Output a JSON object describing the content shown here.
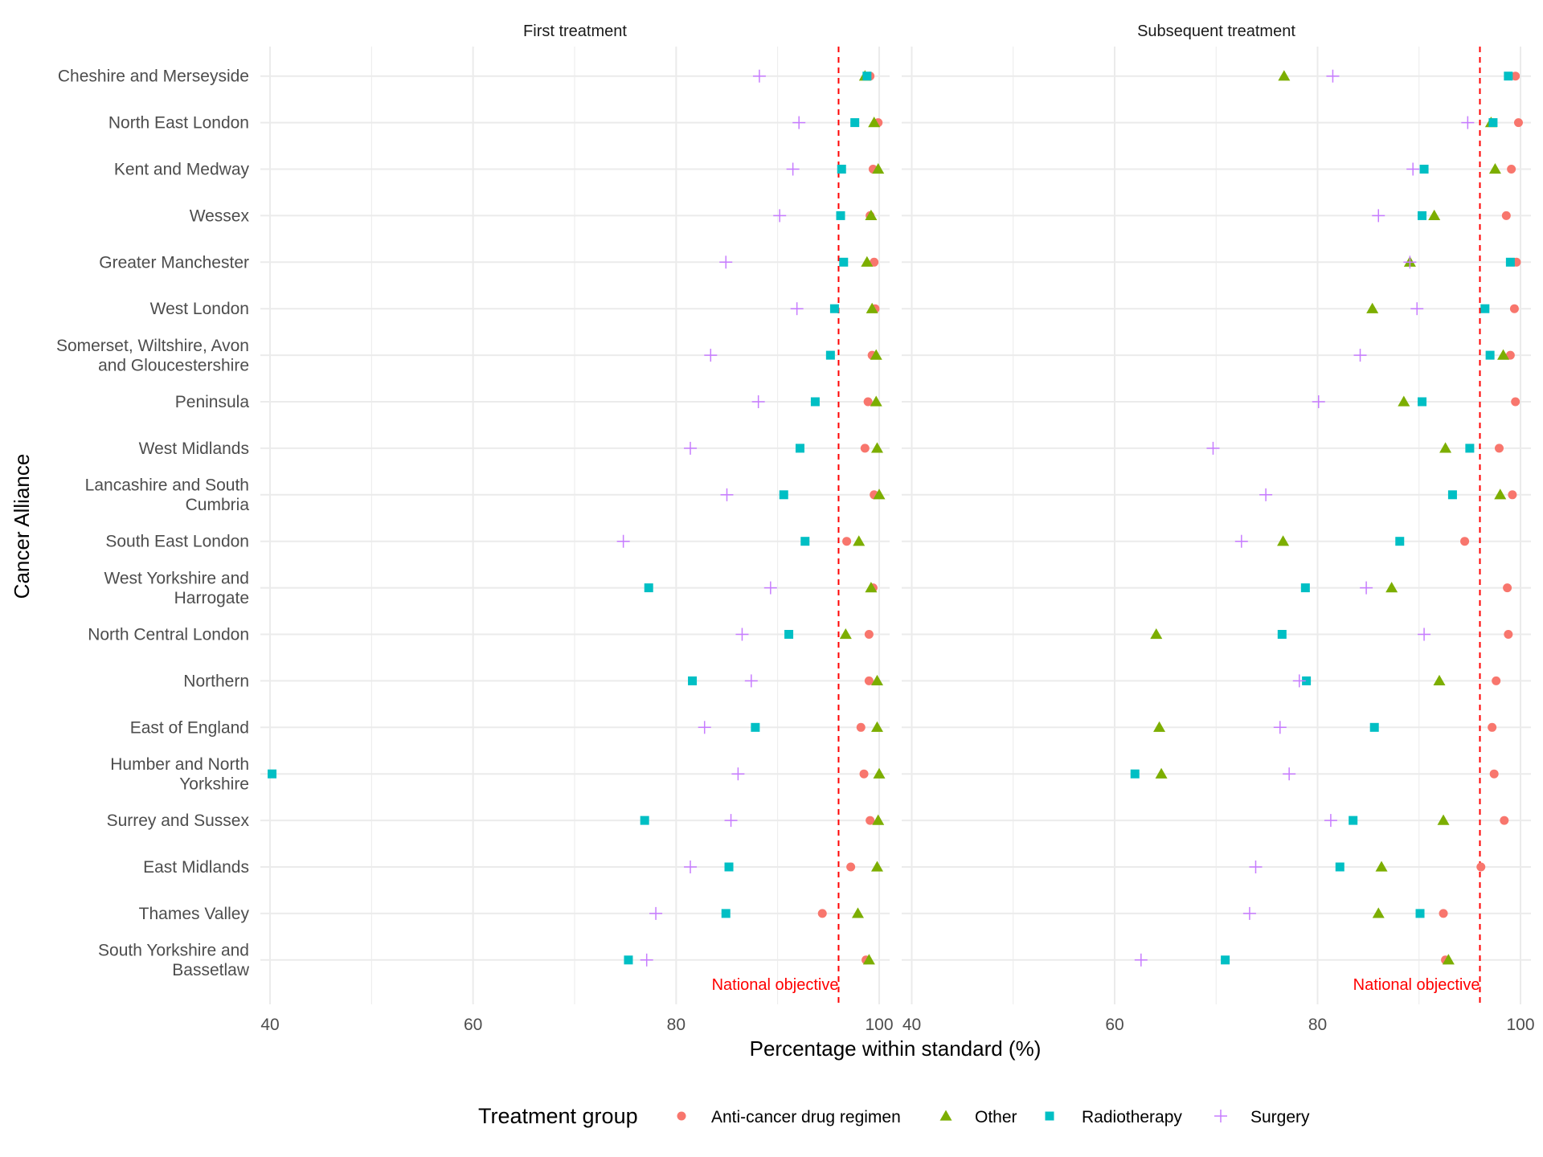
{
  "chart_data": {
    "type": "scatter",
    "panels": [
      "First treatment",
      "Subsequent treatment"
    ],
    "xlabel": "Percentage within standard (%)",
    "ylabel": "Cancer Alliance",
    "xlim": [
      40,
      100
    ],
    "xticks": [
      40,
      60,
      80,
      100
    ],
    "xtick_labels": [
      "40",
      "60",
      "80",
      "100"
    ],
    "grid": true,
    "reference_line": {
      "value": 96,
      "label": "National objective",
      "color": "#FF0000",
      "style": "dashed"
    },
    "legend": {
      "title": "Treatment group",
      "placement": "bottom",
      "entries": [
        {
          "key": "drug",
          "label": "Anti-cancer drug regimen",
          "shape": "circle",
          "color": "#F8766D"
        },
        {
          "key": "other",
          "label": "Other",
          "shape": "triangle",
          "color": "#7CAE00"
        },
        {
          "key": "radio",
          "label": "Radiotherapy",
          "shape": "square",
          "color": "#00BFC4"
        },
        {
          "key": "surgery",
          "label": "Surgery",
          "shape": "plus",
          "color": "#C77CFF"
        }
      ]
    },
    "categories": [
      [
        "Cheshire and Merseyside"
      ],
      [
        "North East London"
      ],
      [
        "Kent and Medway"
      ],
      [
        "Wessex"
      ],
      [
        "Greater Manchester"
      ],
      [
        "West London"
      ],
      [
        "Somerset, Wiltshire, Avon",
        "and Gloucestershire"
      ],
      [
        "Peninsula"
      ],
      [
        "West Midlands"
      ],
      [
        "Lancashire and South",
        "Cumbria"
      ],
      [
        "South East London"
      ],
      [
        "West Yorkshire and",
        "Harrogate"
      ],
      [
        "North Central London"
      ],
      [
        "Northern"
      ],
      [
        "East of England"
      ],
      [
        "Humber and North",
        "Yorkshire"
      ],
      [
        "Surrey and Sussex"
      ],
      [
        "East Midlands"
      ],
      [
        "Thames Valley"
      ],
      [
        "South Yorkshire and",
        "Bassetlaw"
      ]
    ],
    "series": {
      "First treatment": {
        "drug": [
          99.1,
          99.9,
          99.4,
          99.1,
          99.5,
          99.6,
          99.3,
          98.9,
          98.6,
          99.5,
          96.8,
          99.4,
          99.0,
          99.0,
          98.2,
          98.5,
          99.1,
          97.2,
          94.4,
          98.7
        ],
        "other": [
          98.6,
          99.5,
          99.9,
          99.2,
          98.8,
          99.3,
          99.7,
          99.7,
          99.8,
          100.0,
          98.0,
          99.2,
          96.7,
          99.8,
          99.8,
          100.0,
          99.9,
          99.8,
          97.9,
          99.0
        ],
        "radio": [
          98.8,
          97.6,
          96.3,
          96.2,
          96.5,
          95.6,
          95.2,
          93.7,
          92.2,
          90.6,
          92.7,
          77.3,
          91.1,
          81.6,
          87.8,
          40.2,
          76.9,
          85.2,
          84.9,
          75.3
        ],
        "surgery": [
          88.2,
          92.1,
          91.5,
          90.2,
          84.9,
          91.9,
          83.4,
          88.1,
          81.4,
          85.0,
          74.8,
          89.3,
          86.5,
          87.4,
          82.8,
          86.1,
          85.4,
          81.4,
          78.0,
          77.1
        ]
      },
      "Subsequent treatment": {
        "drug": [
          99.5,
          99.8,
          99.1,
          98.6,
          99.6,
          99.4,
          99.0,
          99.5,
          97.9,
          99.2,
          94.5,
          98.7,
          98.8,
          97.6,
          97.2,
          97.4,
          98.4,
          96.1,
          92.4,
          92.6
        ],
        "other": [
          76.7,
          97.1,
          97.5,
          91.5,
          89.1,
          85.4,
          98.3,
          88.5,
          92.6,
          98.0,
          76.6,
          87.3,
          64.1,
          92.0,
          64.4,
          64.6,
          92.4,
          86.3,
          86.0,
          92.9
        ],
        "radio": [
          98.8,
          97.3,
          90.5,
          90.3,
          99.0,
          96.5,
          97.0,
          90.3,
          95.0,
          93.3,
          88.1,
          78.8,
          76.5,
          78.9,
          85.6,
          62.0,
          83.5,
          82.2,
          90.1,
          70.9
        ],
        "surgery": [
          81.5,
          94.8,
          89.4,
          86.0,
          89.1,
          89.8,
          84.2,
          80.1,
          69.7,
          74.9,
          72.5,
          84.8,
          90.5,
          78.2,
          76.3,
          77.2,
          81.3,
          73.9,
          73.3,
          62.6
        ]
      }
    }
  }
}
